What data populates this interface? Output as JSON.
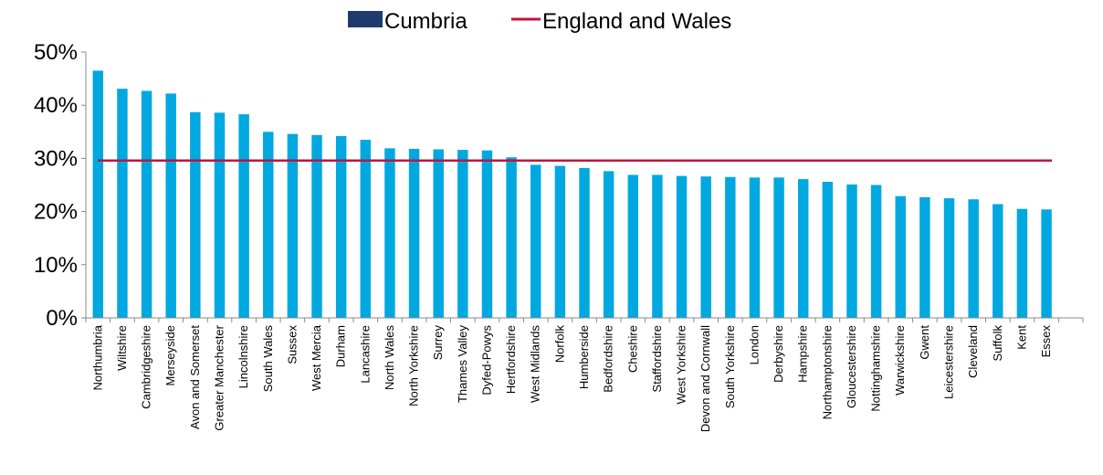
{
  "chart_data": {
    "type": "bar",
    "title": "",
    "xlabel": "",
    "ylabel": "",
    "ylim": [
      0,
      50
    ],
    "yticks": [
      "0%",
      "10%",
      "20%",
      "30%",
      "40%",
      "50%"
    ],
    "legend": {
      "placement": "top-center",
      "items": [
        {
          "label": "Cumbria",
          "kind": "bar-swatch",
          "color": "#1f3a6e"
        },
        {
          "label": "England and Wales",
          "kind": "line",
          "color": "#c0143c"
        }
      ]
    },
    "grid": false,
    "categories": [
      "Northumbria",
      "Wiltshire",
      "Cambridgeshire",
      "Merseyside",
      "Avon and Somerset",
      "Greater Manchester",
      "Lincolnshire",
      "South Wales",
      "Sussex",
      "West Mercia",
      "Durham",
      "Lancashire",
      "North Wales",
      "North Yorkshire",
      "Surrey",
      "Thames Valley",
      "Dyfed-Powys",
      "Hertfordshire",
      "West Midlands",
      "Norfolk",
      "Humberside",
      "Bedfordshire",
      "Cheshire",
      "Staffordshire",
      "West Yorkshire",
      "Devon and Cornwall",
      "South Yorkshire",
      "London",
      "Derbyshire",
      "Hampshire",
      "Northamptonshire",
      "Gloucestershire",
      "Nottinghamshire",
      "Warwickshire",
      "Gwent",
      "Leicestershire",
      "Cleveland",
      "Suffolk",
      "Kent",
      "Essex"
    ],
    "series": [
      {
        "name": "",
        "color": "#00a8e0",
        "values": [
          46.5,
          43.1,
          42.7,
          42.2,
          38.7,
          38.6,
          38.3,
          35.0,
          34.6,
          34.4,
          34.2,
          33.5,
          31.9,
          31.8,
          31.7,
          31.6,
          31.5,
          30.2,
          28.8,
          28.6,
          28.2,
          27.6,
          26.9,
          26.9,
          26.7,
          26.6,
          26.5,
          26.4,
          26.4,
          26.1,
          25.6,
          25.1,
          25.0,
          22.9,
          22.7,
          22.5,
          22.3,
          21.4,
          20.5,
          20.4
        ]
      }
    ],
    "reference_line": {
      "name": "England and Wales",
      "value": 29.6,
      "color": "#c0143c"
    }
  }
}
